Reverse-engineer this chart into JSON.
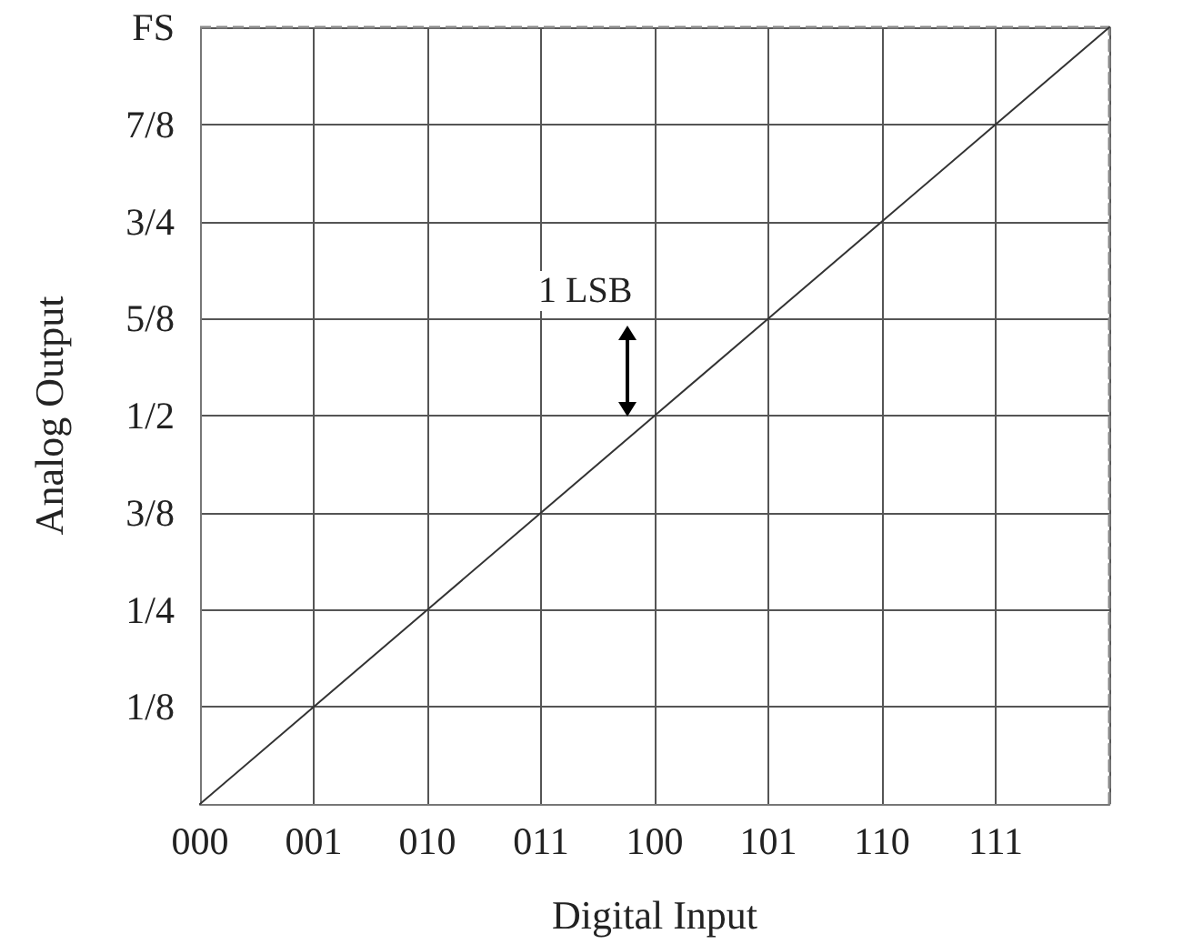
{
  "chart_data": {
    "type": "line",
    "xlabel": "Digital Input",
    "ylabel": "Analog Output",
    "categories": [
      "000",
      "001",
      "010",
      "011",
      "100",
      "101",
      "110",
      "111",
      null
    ],
    "series": [
      {
        "color": "#333333",
        "values": [
          0,
          0.125,
          0.25,
          0.375,
          0.5,
          0.625,
          0.75,
          0.875,
          1
        ]
      }
    ],
    "ylim": [
      0,
      1
    ],
    "yticks": [
      {
        "value": 0,
        "label": null
      },
      {
        "value": 0.125,
        "label": "1/8"
      },
      {
        "value": 0.25,
        "label": "1/4"
      },
      {
        "value": 0.375,
        "label": "3/8"
      },
      {
        "value": 0.5,
        "label": "1/2"
      },
      {
        "value": 0.625,
        "label": "5/8"
      },
      {
        "value": 0.75,
        "label": "3/4"
      },
      {
        "value": 0.875,
        "label": "7/8"
      },
      {
        "value": 1,
        "label": "FS"
      }
    ],
    "ref_lines": [
      {
        "axis": "y",
        "value": 1,
        "line_style": "dashed",
        "color": "#888888"
      }
    ],
    "annotations": [
      "1 LSB"
    ],
    "grid": true,
    "marker": "none",
    "line_style": "solid"
  }
}
